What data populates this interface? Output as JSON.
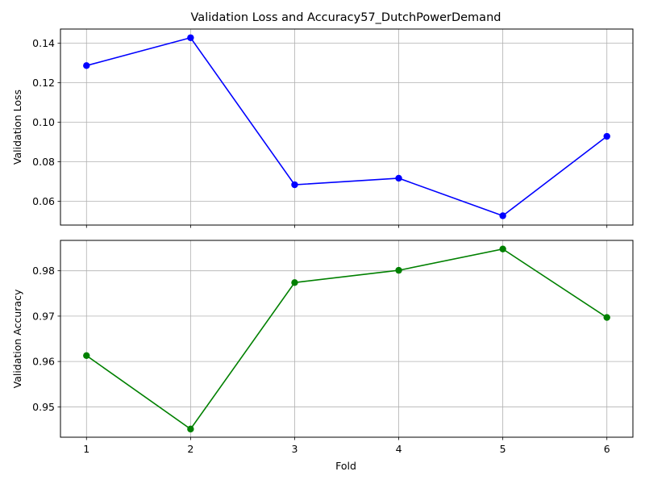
{
  "chart_data": [
    {
      "type": "line",
      "title": "Validation Loss and Accuracy57_DutchPowerDemand",
      "xlabel": "",
      "ylabel": "Validation Loss",
      "x": [
        1,
        2,
        3,
        4,
        5,
        6
      ],
      "xlim": [
        0.75,
        6.25
      ],
      "ylim": [
        0.048,
        0.1472
      ],
      "yticks": [
        0.06,
        0.08,
        0.1,
        0.12,
        0.14
      ],
      "ytick_labels": [
        "0.06",
        "0.08",
        "0.10",
        "0.12",
        "0.14"
      ],
      "grid": true,
      "series": [
        {
          "values": [
            0.1287,
            0.1428,
            0.0684,
            0.0717,
            0.0527,
            0.0929
          ],
          "color": "#0000ff",
          "marker": "circle"
        }
      ]
    },
    {
      "type": "line",
      "title": "",
      "xlabel": "Fold",
      "ylabel": "Validation Accuracy",
      "x": [
        1,
        2,
        3,
        4,
        5,
        6
      ],
      "xticks": [
        1,
        2,
        3,
        4,
        5,
        6
      ],
      "xtick_labels": [
        "1",
        "2",
        "3",
        "4",
        "5",
        "6"
      ],
      "xlim": [
        0.75,
        6.25
      ],
      "ylim": [
        0.9433,
        0.9867
      ],
      "yticks": [
        0.95,
        0.96,
        0.97,
        0.98
      ],
      "ytick_labels": [
        "0.95",
        "0.96",
        "0.97",
        "0.98"
      ],
      "grid": true,
      "series": [
        {
          "values": [
            0.9613,
            0.9451,
            0.9774,
            0.9801,
            0.9848,
            0.9697
          ],
          "color": "#008000",
          "marker": "circle"
        }
      ]
    }
  ]
}
